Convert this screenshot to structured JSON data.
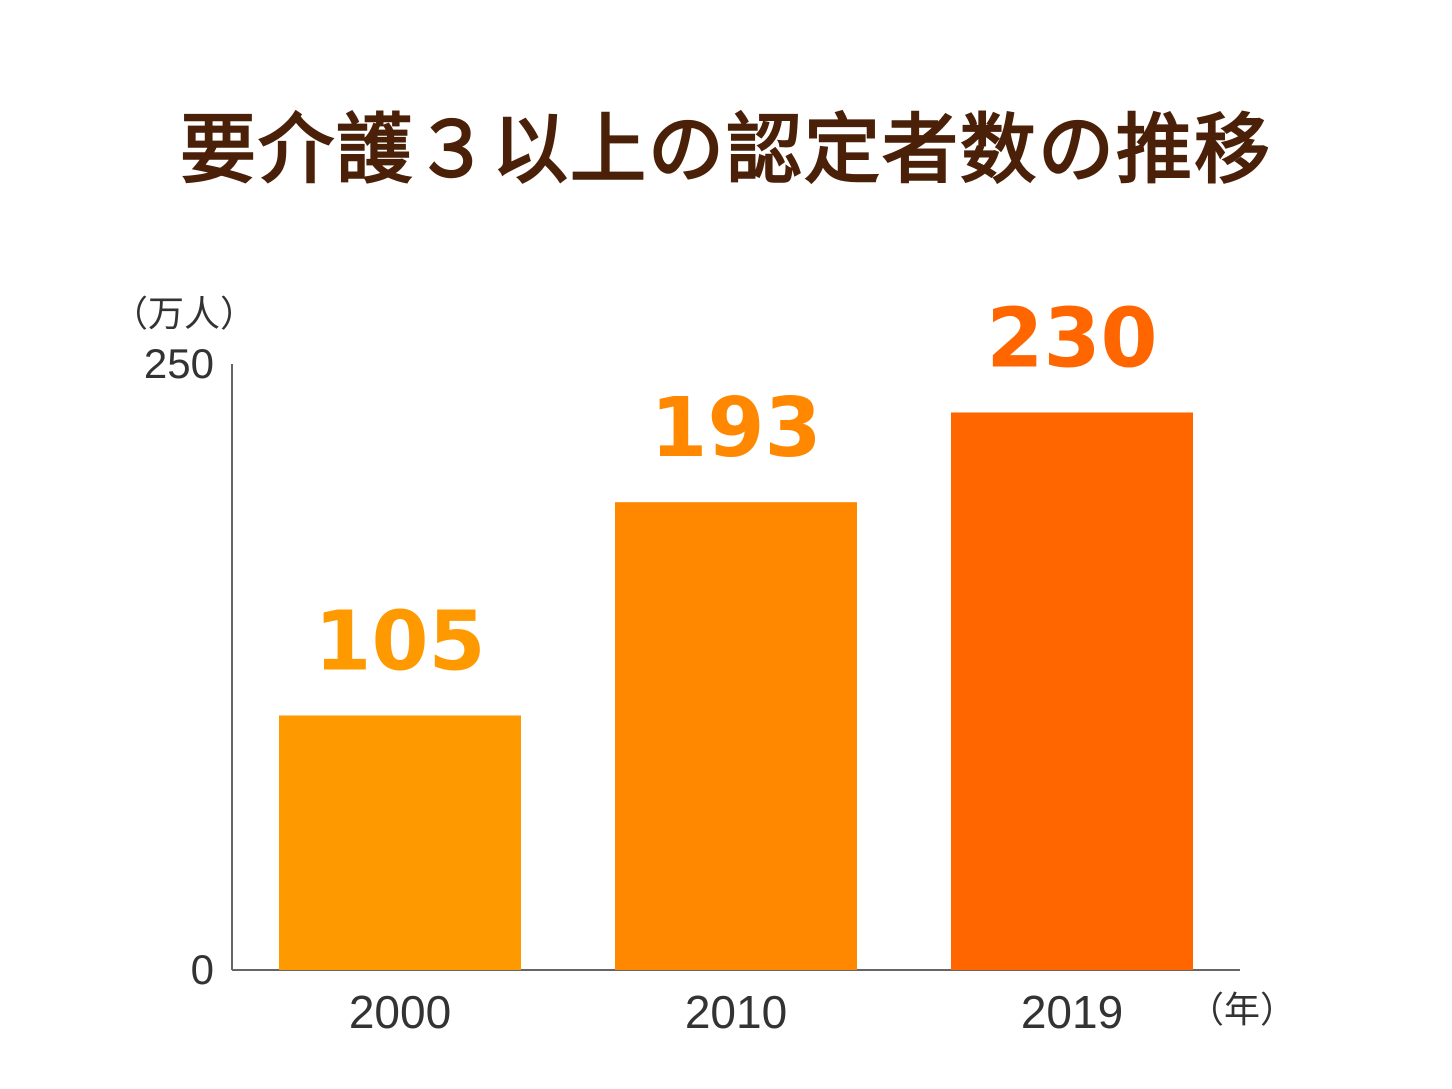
{
  "title": "要介護３以上の認定者数の推移",
  "y_unit_label": "（万人）",
  "x_unit_label": "（年）",
  "chart_data": {
    "type": "bar",
    "title": "要介護３以上の認定者数の推移",
    "xlabel": "（年）",
    "ylabel": "（万人）",
    "categories": [
      "2000",
      "2010",
      "2019"
    ],
    "values": [
      105,
      193,
      230
    ],
    "ylim": [
      0,
      250
    ],
    "yticks": [
      "0",
      "250"
    ],
    "data_labels": [
      "105",
      "193",
      "230"
    ],
    "colors": [
      "#ff9900",
      "#ff8800",
      "#ff6600"
    ],
    "grid": false
  }
}
